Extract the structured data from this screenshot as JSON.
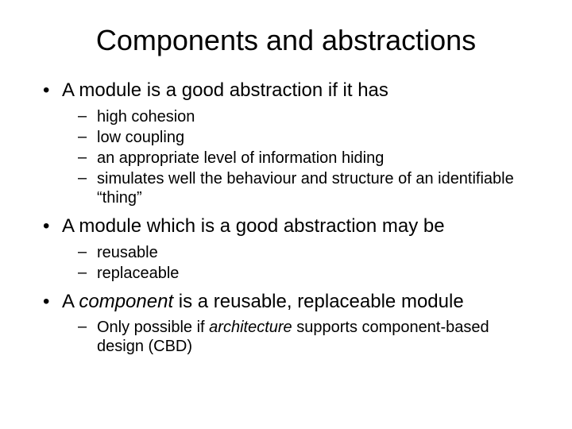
{
  "slide": {
    "title": "Components and abstractions",
    "title_fontsize": 36,
    "background_color": "#ffffff",
    "text_color": "#000000",
    "font_family": "Arial",
    "bullets": {
      "level1_bullet": "•",
      "level2_bullet": "–",
      "level1_fontsize": 24,
      "level2_fontsize": 20,
      "items": [
        {
          "text": "A module is a good abstraction if it has",
          "sub": [
            {
              "text": "high cohesion"
            },
            {
              "text": "low coupling"
            },
            {
              "text": "an appropriate level of information hiding"
            },
            {
              "text": "simulates well the behaviour and structure of an identifiable “thing”"
            }
          ]
        },
        {
          "text": "A module which is a good abstraction may be",
          "sub": [
            {
              "text": "reusable"
            },
            {
              "text": "replaceable"
            }
          ]
        },
        {
          "text_pre": "A ",
          "text_em": "component",
          "text_post": " is a reusable, replaceable module",
          "composite": true,
          "sub": [
            {
              "text_pre": "Only possible if ",
              "text_em": "architecture",
              "text_post": " supports component-based design (CBD)",
              "composite": true
            }
          ]
        }
      ]
    }
  }
}
